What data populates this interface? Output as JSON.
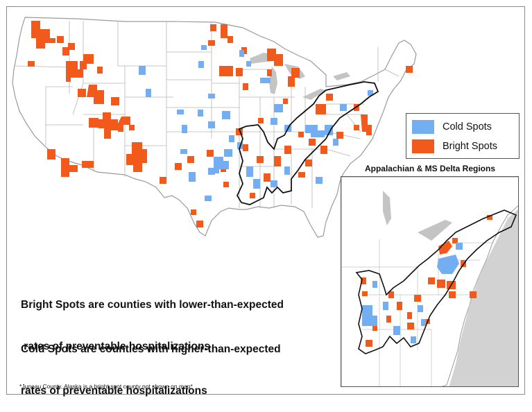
{
  "colors": {
    "cold": "#74aef2",
    "bright": "#f25a1c",
    "water": "#c4c4c4",
    "state_border": "#b5b5b5",
    "region_outline": "#111111"
  },
  "legend": {
    "cold_label": "Cold Spots",
    "bright_label": "Bright Spots"
  },
  "inset": {
    "title": "Appalachian & MS Delta Regions"
  },
  "descriptions": {
    "bright_line1": "Bright Spots are counties with lower-than-expected",
    "bright_line2": " rates of preventable hospitalizations",
    "cold_line1": "Cold Spots are counties with higher-than-expected",
    "cold_line2": "rates of preventable hospitalizations"
  },
  "footnote": "*Juneau County, Alaska is a bright spot county not shown on map*"
}
